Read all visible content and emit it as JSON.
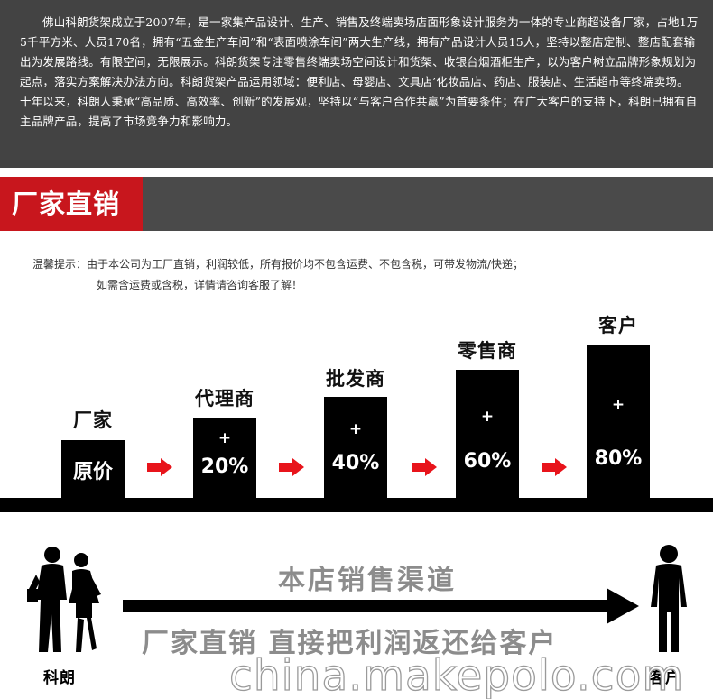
{
  "intro": {
    "text": "佛山科朗货架成立于2007年，是一家集产品设计、生产、销售及终端卖场店面形象设计服务为一体的专业商超设备厂家，占地1万5千平方米、人员170名，拥有“五金生产车间”和“表面喷涂车间”两大生产线，拥有产品设计人员15人，坚持以整店定制、整店配套输出为发展路线。有限空间，无限展示。科朗货架专注零售终端卖场空间设计和货架、收银台烟酒柜生产，以为客户树立品牌形象规划为起点，落实方案解决办法方向。科朗货架产品运用领域：便利店、母婴店、文具店’化妆品店、药店、服装店、生活超市等终端卖场。十年以来，科朗人秉承“高品质、高效率、创新”的发展观，坚持以“与客户合作共赢”为首要条件；在广大客户的支持下，科朗已拥有自主品牌产品，提高了市场竞争力和影响力。"
  },
  "section_title": "厂家直销",
  "tips": {
    "line1": "温馨提示：由于本公司为工厂直销，利润较低，所有报价均不包含运费、不包含税，可带发物流/快递；",
    "line2": "如需含运费或含税，详情请咨询客服了解！"
  },
  "chain": [
    {
      "label": "厂家",
      "plus": "",
      "value": "原价"
    },
    {
      "label": "代理商",
      "plus": "+",
      "value": "20%"
    },
    {
      "label": "批发商",
      "plus": "+",
      "value": "40%"
    },
    {
      "label": "零售商",
      "plus": "+",
      "value": "60%"
    },
    {
      "label": "客户",
      "plus": "+",
      "value": "80%"
    }
  ],
  "colors": {
    "accent_red": "#c8161d",
    "arrow_red": "#e8141b",
    "dark_band": "#434343",
    "slogan_gray": "#8c8c8c"
  },
  "channel_text": "本店销售渠道",
  "slogan_text": "厂家直销 直接把利润返还给客户",
  "left_label": "科朗",
  "right_label": "客户",
  "watermark": "china.makepolo.com"
}
